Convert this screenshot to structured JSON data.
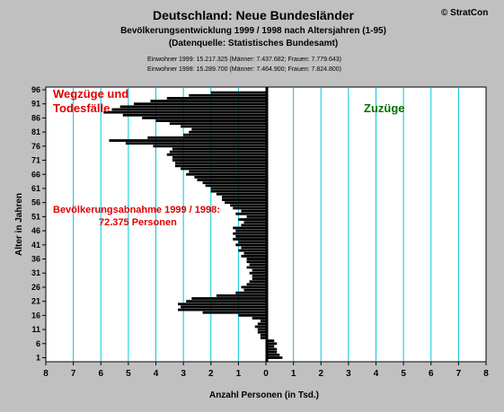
{
  "chart_data": {
    "type": "bar",
    "orientation": "horizontal",
    "title": "Deutschland: Neue Bundesländer",
    "subtitle": "Bevölkerungsentwicklung 1999 / 1998  nach Altersjahren (1-95)",
    "source": "(Datenquelle: Statistisches Bundesamt)",
    "copyright": "© StratCon",
    "info_lines": [
      "Einwohner 1999: 15.217.325  (Männer: 7.437.682; Frauen: 7.779.643)",
      "Einwohner 1998: 15.289.700  (Männer: 7.464.900; Frauen: 7.824.800)"
    ],
    "xlabel": "Anzahl Personen (in Tsd.)",
    "ylabel": "Alter in Jahren",
    "xlim": [
      -8,
      8
    ],
    "ylim": [
      1,
      96
    ],
    "x_tick_values": [
      -8,
      -7,
      -6,
      -5,
      -4,
      -3,
      -2,
      -1,
      0,
      1,
      2,
      3,
      4,
      5,
      6,
      7,
      8
    ],
    "x_tick_labels": [
      "8",
      "7",
      "6",
      "5",
      "4",
      "3",
      "2",
      "1",
      "0",
      "1",
      "2",
      "3",
      "4",
      "5",
      "6",
      "7",
      "8"
    ],
    "y_tick_values": [
      1,
      6,
      11,
      16,
      21,
      26,
      31,
      36,
      41,
      46,
      51,
      56,
      61,
      66,
      71,
      76,
      81,
      86,
      91,
      96
    ],
    "y_tick_labels": [
      "1",
      "6",
      "11",
      "16",
      "21",
      "26",
      "31",
      "36",
      "41",
      "46",
      "51",
      "56",
      "61",
      "66",
      "71",
      "76",
      "81",
      "86",
      "91",
      "96"
    ],
    "grid": true,
    "annotations": {
      "negative_side_line1": "Wegzüge und",
      "negative_side_line2": "Todesfälle",
      "positive_side": "Zuzüge",
      "total_line1": "Bevölkerungsabnahme 1999 / 1998:",
      "total_line2": "72.375 Personen"
    },
    "ages": [
      1,
      2,
      3,
      4,
      5,
      6,
      7,
      8,
      9,
      10,
      11,
      12,
      13,
      14,
      15,
      16,
      17,
      18,
      19,
      20,
      21,
      22,
      23,
      24,
      25,
      26,
      27,
      28,
      29,
      30,
      31,
      32,
      33,
      34,
      35,
      36,
      37,
      38,
      39,
      40,
      41,
      42,
      43,
      44,
      45,
      46,
      47,
      48,
      49,
      50,
      51,
      52,
      53,
      54,
      55,
      56,
      57,
      58,
      59,
      60,
      61,
      62,
      63,
      64,
      65,
      66,
      67,
      68,
      69,
      70,
      71,
      72,
      73,
      74,
      75,
      76,
      77,
      78,
      79,
      80,
      81,
      82,
      83,
      84,
      85,
      86,
      87,
      88,
      89,
      90,
      91,
      92,
      93,
      94,
      95
    ],
    "values": [
      0.6,
      0.5,
      0.4,
      0.4,
      0.3,
      0.4,
      0.3,
      -0.2,
      -0.2,
      -0.3,
      -0.3,
      -0.4,
      -0.3,
      -0.2,
      -0.5,
      -1.0,
      -2.3,
      -3.2,
      -3.1,
      -3.2,
      -2.9,
      -2.7,
      -1.8,
      -1.1,
      -0.8,
      -0.9,
      -0.7,
      -0.6,
      -0.5,
      -0.5,
      -0.6,
      -0.5,
      -0.7,
      -0.6,
      -0.7,
      -0.7,
      -0.9,
      -0.8,
      -1.0,
      -0.9,
      -1.1,
      -1.0,
      -1.2,
      -1.1,
      -1.2,
      -1.1,
      -1.2,
      -0.9,
      -0.8,
      -1.0,
      -0.7,
      -1.1,
      -0.9,
      -1.2,
      -1.3,
      -1.5,
      -1.6,
      -1.6,
      -1.8,
      -2.0,
      -2.0,
      -2.2,
      -2.3,
      -2.5,
      -2.6,
      -2.9,
      -2.8,
      -3.1,
      -3.3,
      -3.3,
      -3.4,
      -3.4,
      -3.6,
      -3.5,
      -3.4,
      -4.1,
      -5.1,
      -5.7,
      -4.3,
      -3.0,
      -2.8,
      -2.7,
      -3.1,
      -3.5,
      -4.0,
      -4.5,
      -5.2,
      -5.9,
      -5.6,
      -5.3,
      -4.8,
      -4.2,
      -3.6,
      -2.8,
      -2.0
    ]
  }
}
